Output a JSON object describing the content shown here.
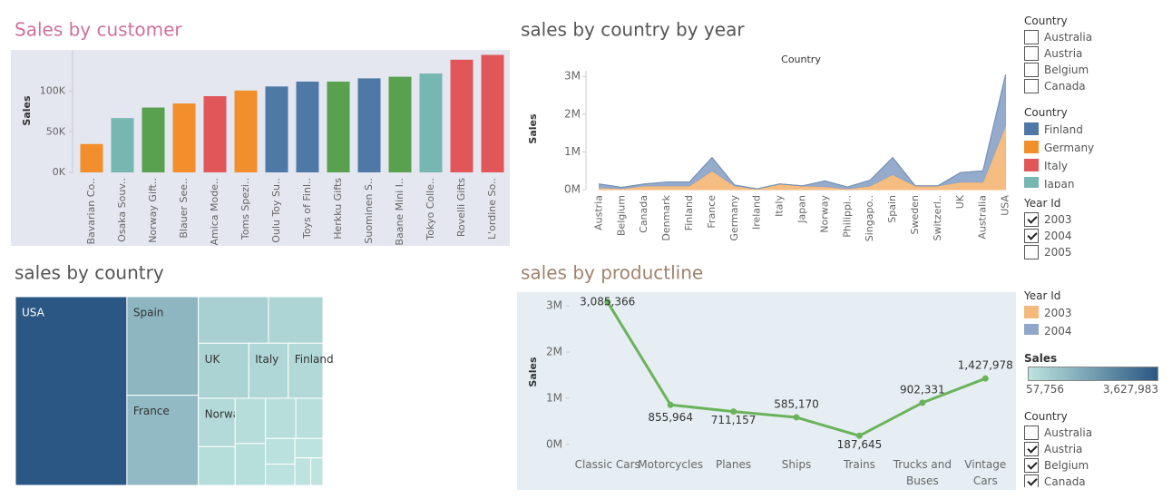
{
  "chart_data": [
    {
      "type": "bar",
      "title": "Sales by customer",
      "y_label": "Sales",
      "categories": [
        "Bavarian Co..",
        "Osaka Souv..",
        "Norway Gift..",
        "Blauer See..",
        "Amica Mode..",
        "Toms Spezi..",
        "Oulu Toy Su..",
        "Toys of Finl..",
        "Herkku Gifts",
        "Suominen S..",
        "Baane Mini I..",
        "Tokyo Colle..",
        "Rovelli Gifts",
        "L'ordine So.."
      ],
      "values": [
        35000,
        67000,
        80000,
        85000,
        94000,
        101000,
        106000,
        112000,
        112000,
        116000,
        118000,
        122000,
        139000,
        145000
      ],
      "colors": [
        "#f28e2b",
        "#76b7b2",
        "#59a14f",
        "#f28e2b",
        "#e15759",
        "#f28e2b",
        "#4e79a7",
        "#4e79a7",
        "#59a14f",
        "#4e79a7",
        "#59a14f",
        "#76b7b2",
        "#e15759",
        "#e15759"
      ],
      "ylim": [
        0,
        150000
      ],
      "yticks": [
        {
          "value": 0,
          "label": "0K"
        },
        {
          "value": 50000,
          "label": "50K"
        },
        {
          "value": 100000,
          "label": "100K"
        }
      ]
    },
    {
      "type": "area",
      "title": "sales by country by year",
      "subtitle": "Country",
      "y_label": "Sales",
      "legend_title": "Year Id",
      "categories": [
        "Austria",
        "Belgium",
        "Canada",
        "Denmark",
        "Finland",
        "France",
        "Germany",
        "Ireland",
        "Italy",
        "Japan",
        "Norway",
        "Philippi..",
        "Singapo..",
        "Spain",
        "Sweden",
        "Switzerl..",
        "UK",
        "Australia",
        "USA"
      ],
      "series": [
        {
          "name": "2003",
          "color": "#f5b97b",
          "values": [
            50000,
            30000,
            100000,
            100000,
            100000,
            500000,
            100000,
            20000,
            150000,
            100000,
            80000,
            20000,
            100000,
            400000,
            100000,
            100000,
            200000,
            200000,
            1700000
          ]
        },
        {
          "name": "2004",
          "color": "#8fa7c8",
          "values": [
            100000,
            30000,
            50000,
            100000,
            100000,
            350000,
            20000,
            0,
            0,
            0,
            150000,
            50000,
            150000,
            450000,
            0,
            0,
            250000,
            300000,
            1350000
          ]
        }
      ],
      "ylim": [
        0,
        3150000
      ],
      "yticks": [
        {
          "value": 0,
          "label": "0M"
        },
        {
          "value": 1000000,
          "label": "1M"
        },
        {
          "value": 2000000,
          "label": "2M"
        },
        {
          "value": 3000000,
          "label": "3M"
        }
      ]
    },
    {
      "type": "treemap",
      "title": "sales  by country",
      "categories": [
        "USA",
        "Spain",
        "France",
        null,
        null,
        "UK",
        "Italy",
        "Finland",
        "Norway",
        null,
        null,
        null,
        null,
        null,
        null,
        null,
        null,
        null,
        null
      ],
      "values": [
        3627983,
        1215686,
        1110917,
        562583,
        436947,
        478880,
        374674,
        329581,
        307463,
        245638,
        236769,
        218994,
        210014,
        188167,
        130000,
        108000,
        94000,
        75000,
        57756
      ],
      "color_scale": {
        "title": "Sales",
        "min": 57756,
        "max": 3627983,
        "min_label": "57,756",
        "max_label": "3,627,983",
        "colors": [
          "#bde4df",
          "#2a5783"
        ]
      }
    },
    {
      "type": "line",
      "title": "sales by productline",
      "y_label": "Sales",
      "categories": [
        "Classic Cars",
        "Motorcycles",
        "Planes",
        "Ships",
        "Trains",
        "Trucks and Buses",
        "Vintage Cars"
      ],
      "values": [
        3085366,
        855964,
        711157,
        585170,
        187645,
        902331,
        1427978
      ],
      "value_labels": [
        "3,085,366",
        "855,964",
        "711,157",
        "585,170",
        "187,645",
        "902,331",
        "1,427,978"
      ],
      "color": "#6ab35b",
      "ylim": [
        -200000,
        3200000
      ],
      "yticks": [
        {
          "value": 0,
          "label": "0M"
        },
        {
          "value": 1000000,
          "label": "1M"
        },
        {
          "value": 2000000,
          "label": "2M"
        },
        {
          "value": 3000000,
          "label": "3M"
        }
      ]
    }
  ],
  "legends": [
    {
      "title": "Country",
      "items": [
        {
          "label": "Finland",
          "color": "#4e79a7"
        },
        {
          "label": "Germany",
          "color": "#f28e2b"
        },
        {
          "label": "Italy",
          "color": "#e15759"
        },
        {
          "label": "Japan",
          "color": "#76b7b2"
        }
      ]
    }
  ],
  "filters": [
    {
      "title": "Country",
      "items": [
        {
          "label": "Australia",
          "checked": false
        },
        {
          "label": "Austria",
          "checked": false
        },
        {
          "label": "Belgium",
          "checked": false
        },
        {
          "label": "Canada",
          "checked": false
        }
      ]
    },
    {
      "title": "Year Id",
      "items": [
        {
          "label": "2003",
          "checked": true
        },
        {
          "label": "2004",
          "checked": true
        },
        {
          "label": "2005",
          "checked": false
        }
      ]
    },
    {
      "title": "Country",
      "items": [
        {
          "label": "Australia",
          "checked": false
        },
        {
          "label": "Austria",
          "checked": true
        },
        {
          "label": "Belgium",
          "checked": true
        },
        {
          "label": "Canada",
          "checked": true
        }
      ]
    }
  ]
}
